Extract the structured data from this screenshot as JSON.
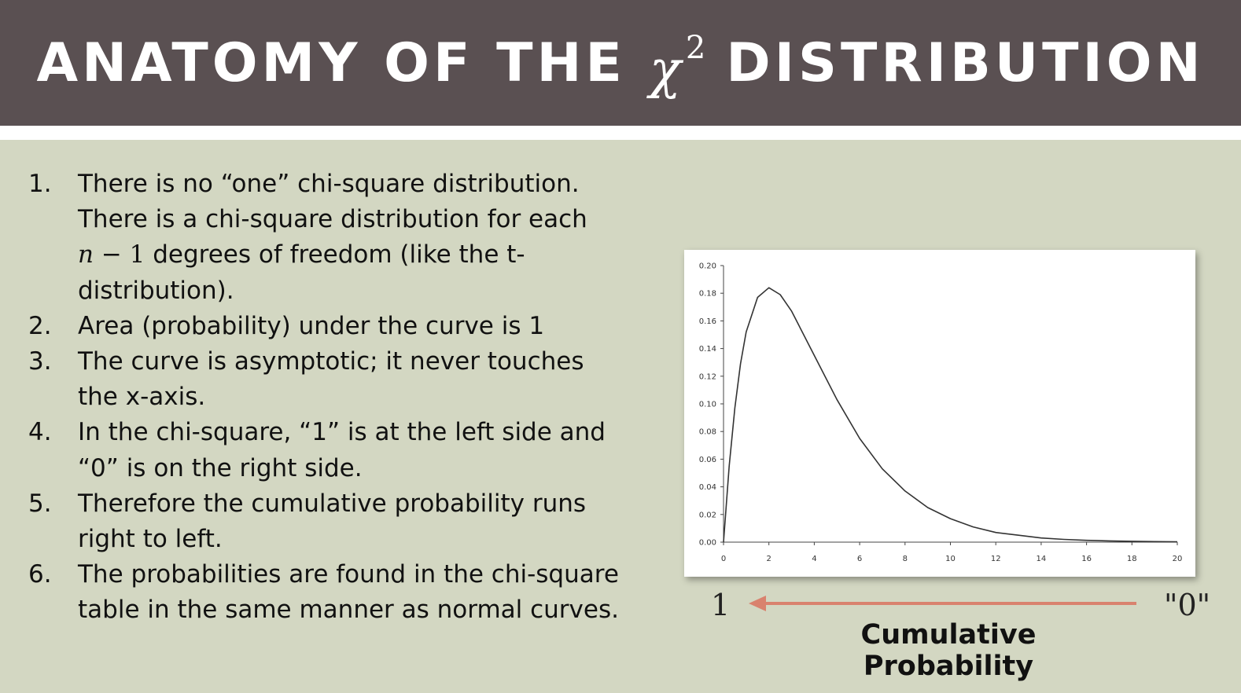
{
  "header": {
    "title_left": "ANATOMY OF THE",
    "title_symbol": "χ",
    "title_exponent": "2",
    "title_right": "DISTRIBUTION",
    "background_color": "#5a5052"
  },
  "points": [
    {
      "number": "1.",
      "text_before": "There is no “one” chi-square distribution. There is a chi-square distribution for each",
      "math_var": "n",
      "math_rest": " − 1",
      "text_after": " degrees of freedom (like the t-distribution)."
    },
    {
      "number": "2.",
      "text": "Area (probability) under the curve is 1"
    },
    {
      "number": "3.",
      "text": "The curve is asymptotic; it never touches the x-axis."
    },
    {
      "number": "4.",
      "text": "In the chi-square, “1” is at the left side and “0” is on the right side."
    },
    {
      "number": "5.",
      "text": "Therefore the cumulative probability runs right to left."
    },
    {
      "number": "6.",
      "text": "The probabilities are found in the chi-square table in the same manner as normal curves."
    }
  ],
  "chart_data": {
    "type": "line",
    "distribution": "chi-square",
    "degrees_of_freedom": 4,
    "xlim": [
      0,
      20
    ],
    "ylim": [
      0,
      0.2
    ],
    "x_ticks": [
      "0",
      "2",
      "4",
      "6",
      "8",
      "10",
      "12",
      "14",
      "16",
      "18",
      "20"
    ],
    "y_ticks": [
      "0.00",
      "0.02",
      "0.04",
      "0.06",
      "0.08",
      "0.10",
      "0.12",
      "0.14",
      "0.16",
      "0.18",
      "0.20"
    ],
    "x": [
      0,
      0.25,
      0.5,
      0.75,
      1,
      1.5,
      2,
      2.5,
      3,
      4,
      5,
      6,
      7,
      8,
      9,
      10,
      11,
      12,
      13,
      14,
      15,
      16,
      17,
      18,
      19,
      20
    ],
    "y": [
      0,
      0.055,
      0.097,
      0.129,
      0.152,
      0.177,
      0.184,
      0.179,
      0.167,
      0.135,
      0.103,
      0.075,
      0.053,
      0.037,
      0.025,
      0.017,
      0.011,
      0.007,
      0.005,
      0.003,
      0.002,
      0.0013,
      0.0009,
      0.0006,
      0.0004,
      0.0002
    ],
    "grid": false,
    "line_color": "#333333"
  },
  "arrow": {
    "left_label": "1",
    "right_label": "\"0\"",
    "caption": "Cumulative Probability",
    "color": "#d9826e"
  }
}
